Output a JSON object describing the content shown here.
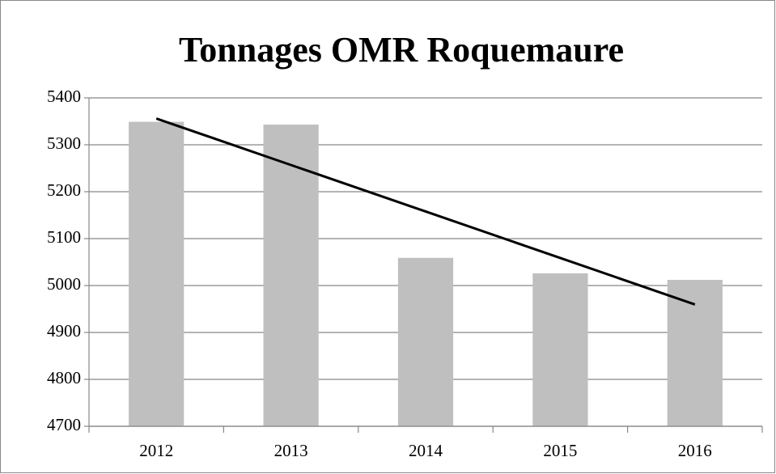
{
  "chart_data": {
    "type": "bar",
    "title": "Tonnages OMR Roquemaure",
    "categories": [
      "2012",
      "2013",
      "2014",
      "2015",
      "2016"
    ],
    "values": [
      5349,
      5343,
      5059,
      5026,
      5012
    ],
    "color": "#bfbfbf",
    "trendline": {
      "color": "#000000",
      "values": [
        5356,
        5256.9,
        5157.8,
        5058.7,
        4959.6
      ]
    },
    "ylim": [
      4700,
      5400
    ],
    "yticks": [
      4700,
      4800,
      4900,
      5000,
      5100,
      5200,
      5300,
      5400
    ],
    "grid": true
  }
}
